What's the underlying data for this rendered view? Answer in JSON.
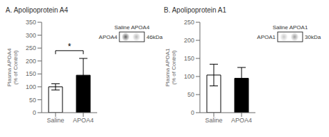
{
  "chart_data": [
    {
      "type": "bar",
      "title": "A. Apolipoprotein A4",
      "y_label": "Plasma APOA4\n(% of Control)",
      "categories": [
        "Saline",
        "APOA4"
      ],
      "values": [
        100,
        145
      ],
      "errors": [
        12,
        65
      ],
      "colors": [
        "white",
        "black"
      ],
      "ylim": [
        0,
        350
      ],
      "yticks": [
        0,
        50,
        100,
        150,
        200,
        250,
        300,
        350
      ],
      "grid": false,
      "significance": {
        "text": "*",
        "y": 240
      },
      "blot": {
        "header": "Saline APOA4",
        "label": "APOA4",
        "kda": "46kDa",
        "band_intensities": [
          0.62,
          0.28
        ]
      }
    },
    {
      "type": "bar",
      "title": "B. Apolipoprotein A1",
      "y_label": "Plasma APOA1\n(% of Control)",
      "categories": [
        "Saline",
        "APOA4"
      ],
      "values": [
        104,
        95
      ],
      "errors": [
        30,
        30
      ],
      "colors": [
        "white",
        "black"
      ],
      "ylim": [
        0,
        250
      ],
      "yticks": [
        0,
        50,
        100,
        150,
        200,
        250
      ],
      "grid": false,
      "blot": {
        "header": "Saline APOA1",
        "label": "APOA1",
        "kda": "30kDa",
        "band_intensities": [
          0.22,
          0.38
        ]
      }
    }
  ]
}
